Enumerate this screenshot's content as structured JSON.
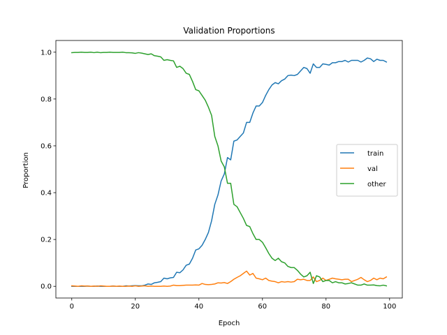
{
  "chart_data": {
    "type": "line",
    "title": "Validation Proportions",
    "xlabel": "Epoch",
    "ylabel": "Proportion",
    "xlim": [
      -5,
      104
    ],
    "ylim": [
      -0.05,
      1.05
    ],
    "xticks": [
      0,
      20,
      40,
      60,
      80,
      100
    ],
    "xtick_labels": [
      "0",
      "20",
      "40",
      "60",
      "80",
      "100"
    ],
    "yticks": [
      0.0,
      0.2,
      0.4,
      0.6,
      0.8,
      1.0
    ],
    "ytick_labels": [
      "0.0",
      "0.2",
      "0.4",
      "0.6",
      "0.8",
      "1.0"
    ],
    "grid": false,
    "legend": "center-right",
    "series": [
      {
        "name": "train",
        "color": "#1f77b4",
        "x": [
          0,
          1,
          2,
          3,
          4,
          5,
          6,
          7,
          8,
          9,
          10,
          11,
          12,
          13,
          14,
          15,
          16,
          17,
          18,
          19,
          20,
          21,
          22,
          23,
          24,
          25,
          26,
          27,
          28,
          29,
          30,
          31,
          32,
          33,
          34,
          35,
          36,
          37,
          38,
          39,
          40,
          41,
          42,
          43,
          44,
          45,
          46,
          47,
          48,
          49,
          50,
          51,
          52,
          53,
          54,
          55,
          56,
          57,
          58,
          59,
          60,
          61,
          62,
          63,
          64,
          65,
          66,
          67,
          68,
          69,
          70,
          71,
          72,
          73,
          74,
          75,
          76,
          77,
          78,
          79,
          80,
          81,
          82,
          83,
          84,
          85,
          86,
          87,
          88,
          89,
          90,
          91,
          92,
          93,
          94,
          95,
          96,
          97,
          98,
          99
        ],
        "values": [
          0.0,
          0.0,
          0.0,
          0.0,
          0.0,
          0.001,
          0.0,
          0.0,
          0.001,
          0.0,
          0.0,
          0.0,
          0.0,
          0.001,
          0.0,
          0.0,
          0.0,
          0.002,
          0.001,
          0.002,
          0.003,
          0.002,
          0.002,
          0.005,
          0.01,
          0.008,
          0.015,
          0.017,
          0.02,
          0.035,
          0.032,
          0.036,
          0.038,
          0.06,
          0.058,
          0.07,
          0.09,
          0.095,
          0.12,
          0.155,
          0.16,
          0.175,
          0.2,
          0.23,
          0.28,
          0.35,
          0.39,
          0.45,
          0.48,
          0.55,
          0.54,
          0.62,
          0.625,
          0.64,
          0.655,
          0.7,
          0.7,
          0.74,
          0.77,
          0.77,
          0.785,
          0.815,
          0.84,
          0.86,
          0.87,
          0.865,
          0.878,
          0.885,
          0.9,
          0.902,
          0.9,
          0.905,
          0.92,
          0.935,
          0.93,
          0.91,
          0.95,
          0.935,
          0.935,
          0.95,
          0.948,
          0.945,
          0.955,
          0.955,
          0.96,
          0.96,
          0.965,
          0.958,
          0.965,
          0.965,
          0.965,
          0.958,
          0.965,
          0.975,
          0.972,
          0.96,
          0.97,
          0.965,
          0.965,
          0.958
        ]
      },
      {
        "name": "val",
        "color": "#ff7f0e",
        "x": [
          0,
          1,
          2,
          3,
          4,
          5,
          6,
          7,
          8,
          9,
          10,
          11,
          12,
          13,
          14,
          15,
          16,
          17,
          18,
          19,
          20,
          21,
          22,
          23,
          24,
          25,
          26,
          27,
          28,
          29,
          30,
          31,
          32,
          33,
          34,
          35,
          36,
          37,
          38,
          39,
          40,
          41,
          42,
          43,
          44,
          45,
          46,
          47,
          48,
          49,
          50,
          51,
          52,
          53,
          54,
          55,
          56,
          57,
          58,
          59,
          60,
          61,
          62,
          63,
          64,
          65,
          66,
          67,
          68,
          69,
          70,
          71,
          72,
          73,
          74,
          75,
          76,
          77,
          78,
          79,
          80,
          81,
          82,
          83,
          84,
          85,
          86,
          87,
          88,
          89,
          90,
          91,
          92,
          93,
          94,
          95,
          96,
          97,
          98,
          99
        ],
        "values": [
          0.002,
          0.001,
          0.0,
          0.002,
          0.001,
          0.001,
          0.0,
          0.001,
          0.0,
          0.002,
          0.001,
          0.0,
          0.0,
          0.001,
          0.0,
          0.001,
          0.0,
          0.0,
          0.001,
          0.0,
          0.002,
          0.0,
          0.001,
          0.002,
          0.0,
          0.001,
          0.0,
          0.0,
          0.0,
          0.001,
          0.0,
          0.001,
          0.005,
          0.003,
          0.003,
          0.004,
          0.005,
          0.005,
          0.005,
          0.006,
          0.005,
          0.012,
          0.008,
          0.007,
          0.008,
          0.01,
          0.015,
          0.014,
          0.016,
          0.012,
          0.02,
          0.03,
          0.038,
          0.045,
          0.055,
          0.065,
          0.048,
          0.055,
          0.035,
          0.032,
          0.028,
          0.035,
          0.025,
          0.022,
          0.02,
          0.015,
          0.02,
          0.018,
          0.02,
          0.018,
          0.02,
          0.03,
          0.028,
          0.03,
          0.025,
          0.025,
          0.04,
          0.02,
          0.025,
          0.035,
          0.025,
          0.03,
          0.035,
          0.032,
          0.03,
          0.028,
          0.03,
          0.03,
          0.02,
          0.025,
          0.03,
          0.038,
          0.028,
          0.02,
          0.025,
          0.035,
          0.028,
          0.035,
          0.032,
          0.04
        ]
      },
      {
        "name": "other",
        "color": "#2ca02c",
        "x": [
          0,
          1,
          2,
          3,
          4,
          5,
          6,
          7,
          8,
          9,
          10,
          11,
          12,
          13,
          14,
          15,
          16,
          17,
          18,
          19,
          20,
          21,
          22,
          23,
          24,
          25,
          26,
          27,
          28,
          29,
          30,
          31,
          32,
          33,
          34,
          35,
          36,
          37,
          38,
          39,
          40,
          41,
          42,
          43,
          44,
          45,
          46,
          47,
          48,
          49,
          50,
          51,
          52,
          53,
          54,
          55,
          56,
          57,
          58,
          59,
          60,
          61,
          62,
          63,
          64,
          65,
          66,
          67,
          68,
          69,
          70,
          71,
          72,
          73,
          74,
          75,
          76,
          77,
          78,
          79,
          80,
          81,
          82,
          83,
          84,
          85,
          86,
          87,
          88,
          89,
          90,
          91,
          92,
          93,
          94,
          95,
          96,
          97,
          98,
          99
        ],
        "values": [
          0.998,
          0.999,
          0.999,
          1.0,
          0.999,
          0.999,
          1.0,
          0.998,
          1.0,
          0.998,
          0.999,
          0.999,
          1.0,
          0.999,
          0.999,
          0.999,
          1.0,
          0.998,
          0.998,
          0.997,
          0.995,
          0.998,
          0.996,
          0.993,
          0.99,
          0.993,
          0.985,
          0.983,
          0.98,
          0.965,
          0.968,
          0.965,
          0.963,
          0.935,
          0.94,
          0.93,
          0.91,
          0.905,
          0.875,
          0.84,
          0.835,
          0.815,
          0.795,
          0.765,
          0.73,
          0.64,
          0.6,
          0.535,
          0.51,
          0.44,
          0.44,
          0.35,
          0.34,
          0.315,
          0.29,
          0.26,
          0.255,
          0.225,
          0.2,
          0.2,
          0.188,
          0.165,
          0.14,
          0.12,
          0.11,
          0.12,
          0.105,
          0.1,
          0.085,
          0.08,
          0.08,
          0.068,
          0.052,
          0.04,
          0.045,
          0.06,
          0.012,
          0.045,
          0.04,
          0.02,
          0.025,
          0.025,
          0.015,
          0.02,
          0.015,
          0.015,
          0.01,
          0.012,
          0.015,
          0.01,
          0.005,
          0.005,
          0.01,
          0.005,
          0.005,
          0.006,
          0.003,
          0.002,
          0.005,
          0.002
        ]
      }
    ]
  }
}
